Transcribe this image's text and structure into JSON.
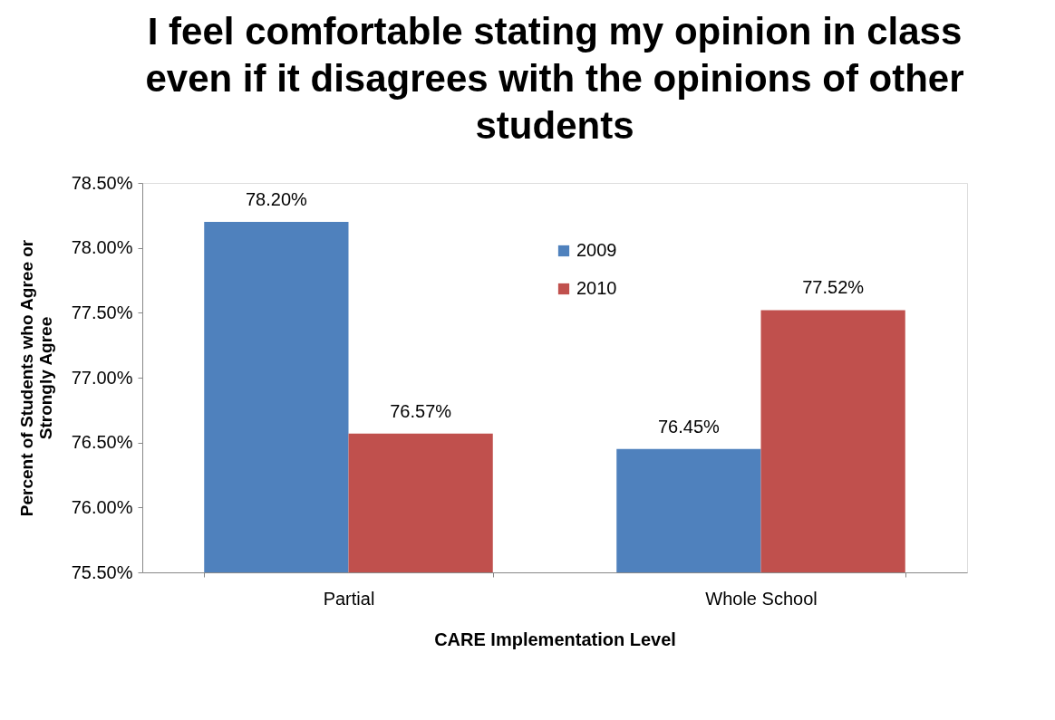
{
  "chart_data": {
    "type": "bar",
    "title": "I feel comfortable stating my opinion in class even if it disagrees with the opinions of other students",
    "xlabel": "CARE Implementation Level",
    "ylabel": "Percent of Students who Agree or Strongly Agree",
    "categories": [
      "Partial",
      "Whole School"
    ],
    "series": [
      {
        "name": "2009",
        "color": "#4f81bd",
        "values": [
          78.2,
          76.45
        ],
        "value_labels": [
          "78.20%",
          "76.45%"
        ]
      },
      {
        "name": "2010",
        "color": "#c0504d",
        "values": [
          76.57,
          77.52
        ],
        "value_labels": [
          "76.57%",
          "77.52%"
        ]
      }
    ],
    "ylim": [
      75.5,
      78.5
    ],
    "yticks": [
      {
        "value": 75.5,
        "label": "75.50%"
      },
      {
        "value": 76,
        "label": "76.00%"
      },
      {
        "value": 76.5,
        "label": "76.50%"
      },
      {
        "value": 77,
        "label": "77.00%"
      },
      {
        "value": 77.5,
        "label": "77.50%"
      },
      {
        "value": 78,
        "label": "78.00%"
      },
      {
        "value": 78.5,
        "label": "78.50%"
      }
    ],
    "grid": false,
    "legend": "top"
  }
}
